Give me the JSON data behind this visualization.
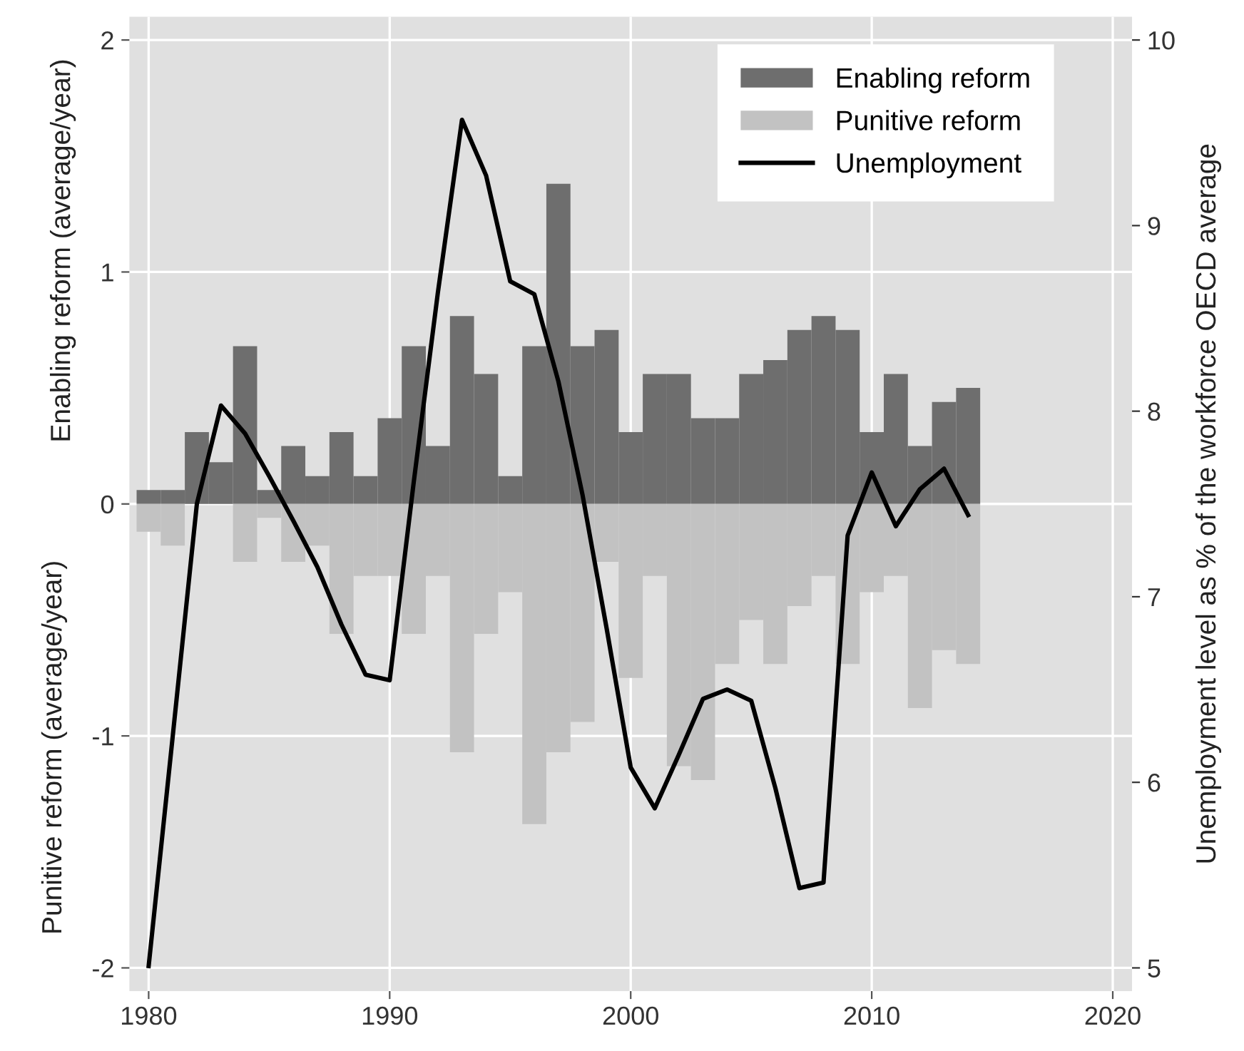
{
  "chart_data": {
    "type": "bar",
    "ylabel": "Enabling reform (average/year)",
    "y2label": "Unemployment level as % of the workforce OECD average",
    "annotations": [
      "Punitive reform (average/year)"
    ],
    "x": [
      1980,
      1981,
      1982,
      1983,
      1984,
      1985,
      1986,
      1987,
      1988,
      1989,
      1990,
      1991,
      1992,
      1993,
      1994,
      1995,
      1996,
      1997,
      1998,
      1999,
      2000,
      2001,
      2002,
      2003,
      2004,
      2005,
      2006,
      2007,
      2008,
      2009,
      2010,
      2011,
      2012,
      2013,
      2014
    ],
    "series": [
      {
        "name": "Enabling reform",
        "color": "#6e6e6e",
        "values": [
          0.06,
          0.06,
          0.31,
          0.18,
          0.68,
          0.06,
          0.25,
          0.12,
          0.31,
          0.12,
          0.37,
          0.68,
          0.25,
          0.81,
          0.56,
          0.12,
          0.68,
          1.38,
          0.68,
          0.75,
          0.31,
          0.56,
          0.56,
          0.37,
          0.37,
          0.56,
          0.62,
          0.75,
          0.81,
          0.75,
          0.31,
          0.56,
          0.25,
          0.44,
          0.5
        ]
      },
      {
        "name": "Punitive reform",
        "color": "#c2c2c2",
        "values": [
          -0.12,
          -0.18,
          0,
          0,
          -0.25,
          -0.06,
          -0.25,
          -0.18,
          -0.56,
          -0.31,
          -0.31,
          -0.56,
          -0.31,
          -1.07,
          -0.56,
          -0.38,
          -1.38,
          -1.07,
          -0.94,
          -0.25,
          -0.75,
          -0.31,
          -1.13,
          -1.19,
          -0.69,
          -0.5,
          -0.69,
          -0.44,
          -0.31,
          -0.69,
          -0.38,
          -0.31,
          -0.88,
          -0.63,
          -0.69
        ]
      },
      {
        "name": "Unemployment",
        "type": "line",
        "axis": "y2",
        "color": "#000000",
        "values": [
          5.01,
          6.25,
          7.5,
          8.03,
          7.88,
          7.65,
          7.41,
          7.16,
          6.85,
          6.58,
          6.55,
          7.62,
          8.64,
          9.57,
          9.27,
          8.7,
          8.63,
          8.16,
          7.55,
          6.83,
          6.08,
          5.86,
          6.15,
          6.45,
          6.5,
          6.44,
          5.97,
          5.43,
          5.46,
          7.33,
          7.67,
          7.38,
          7.58,
          7.69,
          7.44
        ]
      }
    ],
    "xlim": [
      1979.2,
      2020.8
    ],
    "xticks": [
      1980,
      1990,
      2000,
      2010,
      2020
    ],
    "ylim": [
      -2.1,
      2.1
    ],
    "yticks": [
      -2,
      -1,
      0,
      1,
      2
    ],
    "y2lim": [
      4.875,
      10.125
    ],
    "y2ticks": [
      5,
      6,
      7,
      8,
      9,
      10
    ],
    "stacked": true,
    "grid": true,
    "legend": "top right"
  }
}
